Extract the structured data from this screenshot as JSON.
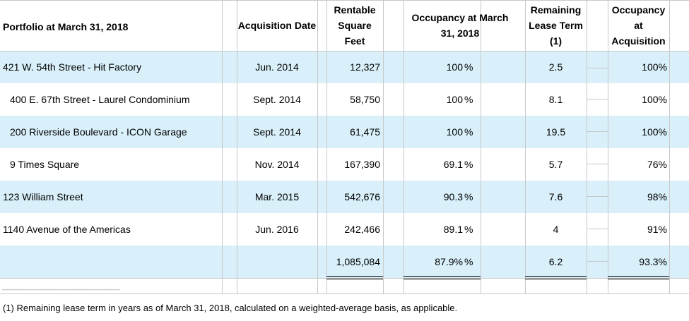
{
  "table": {
    "header": [
      "Portfolio at March 31, 2018",
      "Acquisition Date",
      "Rentable Square Feet",
      "Occupancy at March 31, 2018",
      "Remaining Lease Term (1)",
      "Occupancy at Acquisition"
    ],
    "rows": [
      {
        "property": "421 W. 54th Street - Hit Factory",
        "date": "Jun. 2014",
        "sqft": "12,327",
        "occupancy": "100",
        "occupancy_unit": "%",
        "lease_term": "2.5",
        "acquisition_occupancy": "100%"
      },
      {
        "property": "400 E. 67th Street - Laurel Condominium",
        "date": "Sept. 2014",
        "sqft": "58,750",
        "occupancy": "100",
        "occupancy_unit": "%",
        "lease_term": "8.1",
        "acquisition_occupancy": "100%"
      },
      {
        "property": "200 Riverside Boulevard - ICON Garage",
        "date": "Sept. 2014",
        "sqft": "61,475",
        "occupancy": "100",
        "occupancy_unit": "%",
        "lease_term": "19.5",
        "acquisition_occupancy": "100%"
      },
      {
        "property": "9 Times Square",
        "date": "Nov. 2014",
        "sqft": "167,390",
        "occupancy": "69.1",
        "occupancy_unit": "%",
        "lease_term": "5.7",
        "acquisition_occupancy": "76%"
      },
      {
        "property": "123 William Street",
        "date": "Mar. 2015",
        "sqft": "542,676",
        "occupancy": "90.3",
        "occupancy_unit": "%",
        "lease_term": "7.6",
        "acquisition_occupancy": "98%"
      },
      {
        "property": "1140 Avenue of the Americas",
        "date": "Jun. 2016",
        "sqft": "242,466",
        "occupancy": "89.1",
        "occupancy_unit": "%",
        "lease_term": "4",
        "acquisition_occupancy": "91%"
      }
    ],
    "total": {
      "sqft": "1,085,084",
      "occupancy": "87.9%",
      "occupancy_unit": "%",
      "lease_term": "6.2",
      "acquisition_occupancy": "93.3%"
    },
    "footnote_rule": "______________________________",
    "footnote": "(1) Remaining lease term in years as of March 31, 2018, calculated on a weighted-average basis, as applicable."
  }
}
